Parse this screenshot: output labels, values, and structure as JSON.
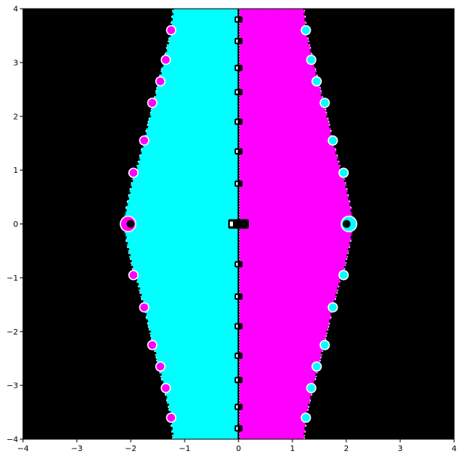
{
  "chart_data": {
    "type": "heatmap",
    "title": "",
    "xlabel": "",
    "ylabel": "",
    "xlim": [
      -4,
      4
    ],
    "ylim": [
      -4,
      4
    ],
    "grid": false,
    "legend": "none",
    "x_ticks": [
      "−4",
      "−3",
      "−2",
      "−1",
      "0",
      "1",
      "2",
      "3",
      "4"
    ],
    "y_ticks": [
      "4",
      "3",
      "2",
      "1",
      "0",
      "−1",
      "−2",
      "−3",
      "−4"
    ],
    "colors": {
      "background": "#000000",
      "left_basin": "#00ffff",
      "right_basin": "#ff00ff",
      "boundary": "#ffffff"
    },
    "left_basin_boundary": [
      [
        -1.22,
        4.0
      ],
      [
        -1.28,
        3.5
      ],
      [
        -1.45,
        2.8
      ],
      [
        -1.7,
        1.8
      ],
      [
        -1.85,
        1.2
      ],
      [
        -1.98,
        0.8
      ],
      [
        -2.1,
        0.25
      ],
      [
        -2.18,
        0.0
      ],
      [
        -2.1,
        -0.25
      ],
      [
        -1.98,
        -0.8
      ],
      [
        -1.85,
        -1.2
      ],
      [
        -1.7,
        -1.8
      ],
      [
        -1.45,
        -2.8
      ],
      [
        -1.28,
        -3.5
      ],
      [
        -1.22,
        -4.0
      ]
    ],
    "right_basin_boundary": [
      [
        1.22,
        4.0
      ],
      [
        1.28,
        3.5
      ],
      [
        1.45,
        2.8
      ],
      [
        1.7,
        1.8
      ],
      [
        1.85,
        1.2
      ],
      [
        1.98,
        0.8
      ],
      [
        2.1,
        0.25
      ],
      [
        2.18,
        0.0
      ],
      [
        2.1,
        -0.25
      ],
      [
        1.98,
        -0.8
      ],
      [
        1.85,
        -1.2
      ],
      [
        1.7,
        -1.8
      ],
      [
        1.45,
        -2.8
      ],
      [
        1.28,
        -3.5
      ],
      [
        1.22,
        -4.0
      ]
    ],
    "axis_blobs_y": [
      3.8,
      3.4,
      2.9,
      2.45,
      1.9,
      1.35,
      0.75,
      0.0,
      -0.75,
      -1.35,
      -1.9,
      -2.45,
      -2.9,
      -3.4,
      -3.8
    ],
    "edge_bulbs": [
      {
        "x": -2.05,
        "y": 0.0,
        "color": "right_basin"
      },
      {
        "x": 2.05,
        "y": 0.0,
        "color": "left_basin"
      },
      {
        "x": -1.95,
        "y": 0.95,
        "color": "right_basin"
      },
      {
        "x": -1.95,
        "y": -0.95,
        "color": "right_basin"
      },
      {
        "x": 1.95,
        "y": 0.95,
        "color": "left_basin"
      },
      {
        "x": 1.95,
        "y": -0.95,
        "color": "left_basin"
      },
      {
        "x": -1.75,
        "y": 1.55,
        "color": "right_basin"
      },
      {
        "x": -1.75,
        "y": -1.55,
        "color": "right_basin"
      },
      {
        "x": 1.75,
        "y": 1.55,
        "color": "left_basin"
      },
      {
        "x": 1.75,
        "y": -1.55,
        "color": "left_basin"
      },
      {
        "x": -1.6,
        "y": 2.25,
        "color": "right_basin"
      },
      {
        "x": -1.6,
        "y": -2.25,
        "color": "right_basin"
      },
      {
        "x": 1.6,
        "y": 2.25,
        "color": "left_basin"
      },
      {
        "x": 1.6,
        "y": -2.25,
        "color": "left_basin"
      },
      {
        "x": -1.45,
        "y": 2.65,
        "color": "right_basin"
      },
      {
        "x": -1.45,
        "y": -2.65,
        "color": "right_basin"
      },
      {
        "x": 1.45,
        "y": 2.65,
        "color": "left_basin"
      },
      {
        "x": 1.45,
        "y": -2.65,
        "color": "left_basin"
      },
      {
        "x": -1.35,
        "y": 3.05,
        "color": "right_basin"
      },
      {
        "x": -1.35,
        "y": -3.05,
        "color": "right_basin"
      },
      {
        "x": 1.35,
        "y": 3.05,
        "color": "left_basin"
      },
      {
        "x": 1.35,
        "y": -3.05,
        "color": "left_basin"
      },
      {
        "x": -1.25,
        "y": 3.6,
        "color": "right_basin"
      },
      {
        "x": -1.25,
        "y": -3.6,
        "color": "right_basin"
      },
      {
        "x": 1.25,
        "y": 3.6,
        "color": "left_basin"
      },
      {
        "x": 1.25,
        "y": -3.6,
        "color": "left_basin"
      }
    ]
  }
}
